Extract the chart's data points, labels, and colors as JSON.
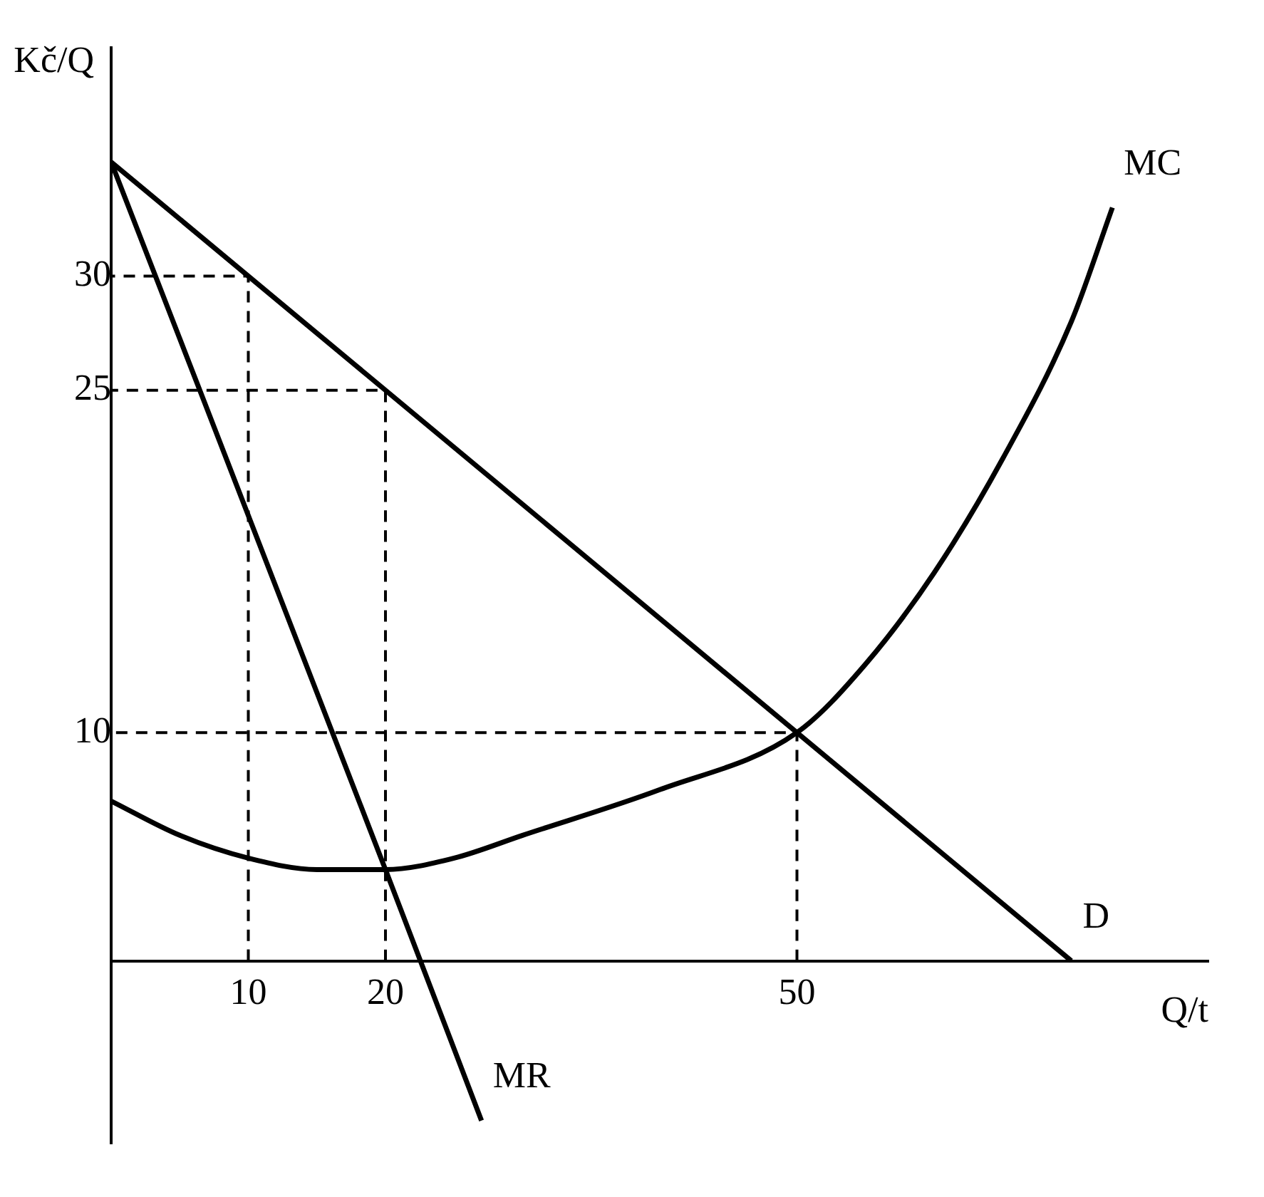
{
  "chart_data": {
    "type": "line",
    "xlabel": "Q/t",
    "ylabel": "Kč/Q",
    "xlim": [
      0,
      80
    ],
    "ylim": [
      -8,
      40
    ],
    "xticks": [
      10,
      20,
      50
    ],
    "yticks": [
      10,
      25,
      30
    ],
    "grid": false,
    "legend": false,
    "marker": "none",
    "series": [
      {
        "name": "D",
        "color": "#000000",
        "x": [
          0,
          70
        ],
        "values": [
          35,
          0
        ]
      },
      {
        "name": "MR",
        "color": "#000000",
        "x": [
          0,
          20,
          27
        ],
        "values": [
          35,
          4,
          -7
        ]
      },
      {
        "name": "MC",
        "color": "#000000",
        "x": [
          0,
          5,
          10,
          15,
          20,
          25,
          30,
          40,
          50,
          55,
          60,
          65,
          70,
          73
        ],
        "values": [
          7,
          5.5,
          4.5,
          4,
          4,
          4.5,
          5.5,
          7.5,
          10,
          13,
          17,
          22,
          28,
          33
        ]
      },
      {
        "color": "#000000",
        "line_style": "dashed",
        "x": [
          10,
          10,
          0
        ],
        "values": [
          0,
          30,
          30
        ]
      },
      {
        "color": "#000000",
        "line_style": "dashed",
        "x": [
          20,
          20,
          0
        ],
        "values": [
          0,
          25,
          25
        ]
      },
      {
        "color": "#000000",
        "line_style": "dashed",
        "x": [
          50,
          50,
          0
        ],
        "values": [
          0,
          10,
          10
        ]
      }
    ]
  }
}
